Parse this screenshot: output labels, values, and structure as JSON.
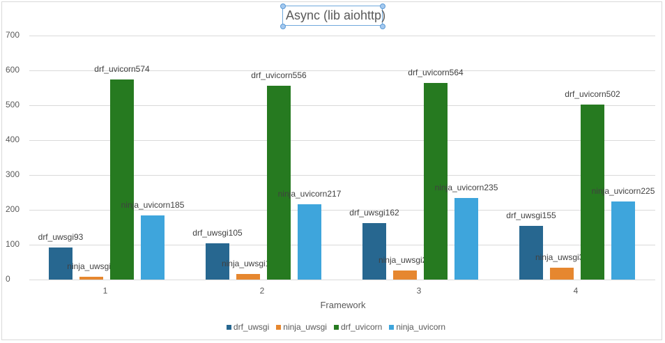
{
  "chart_data": {
    "type": "bar",
    "title": "Async (lib aiohttp)",
    "xlabel": "Framework",
    "ylabel": "",
    "ylim": [
      0,
      700
    ],
    "yticks": [
      0,
      100,
      200,
      300,
      400,
      500,
      600,
      700
    ],
    "categories": [
      "1",
      "2",
      "3",
      "4"
    ],
    "series": [
      {
        "name": "drf_uwsgi",
        "color": "#276790",
        "values": [
          93,
          105,
          162,
          155
        ]
      },
      {
        "name": "ninja_uwsgi",
        "color": "#e6872f",
        "values": [
          9,
          17,
          26,
          34
        ]
      },
      {
        "name": "drf_uvicorn",
        "color": "#267a20",
        "values": [
          574,
          556,
          564,
          502
        ]
      },
      {
        "name": "ninja_uvicorn",
        "color": "#3ea5dc",
        "values": [
          185,
          217,
          235,
          225
        ]
      }
    ],
    "grid": true,
    "legend_position": "bottom",
    "data_labels": "series name + value"
  },
  "labels": {
    "title": "Async (lib aiohttp)",
    "xlabel": "Framework"
  }
}
